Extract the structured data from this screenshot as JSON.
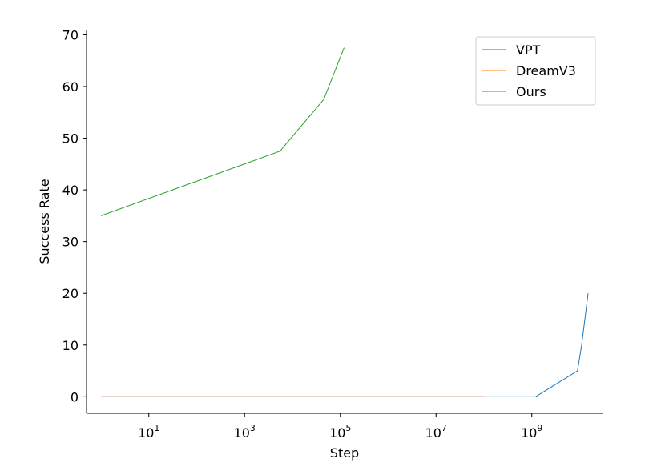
{
  "chart_data": {
    "type": "line",
    "title": "",
    "xlabel": "Step",
    "ylabel": "Success Rate",
    "xscale": "log",
    "xlim": [
      0.5,
      30000000000.0
    ],
    "ylim": [
      -3.2,
      71
    ],
    "x_ticks": [
      {
        "value": 10,
        "base": "10",
        "exp": "1"
      },
      {
        "value": 1000,
        "base": "10",
        "exp": "3"
      },
      {
        "value": 100000,
        "base": "10",
        "exp": "5"
      },
      {
        "value": 10000000,
        "base": "10",
        "exp": "7"
      },
      {
        "value": 1000000000,
        "base": "10",
        "exp": "9"
      }
    ],
    "y_ticks": [
      0,
      10,
      20,
      30,
      40,
      50,
      60,
      70
    ],
    "grid": false,
    "legend_position": "top-right",
    "series": [
      {
        "name": "VPT",
        "color": "#1f77b4",
        "x": [
          1,
          1200000000.0,
          9000000000.0,
          11000000000.0,
          15000000000.0
        ],
        "y": [
          0,
          0,
          5,
          10,
          20
        ]
      },
      {
        "name": "DreamV3",
        "color": "#ff7f0e",
        "x": [
          1,
          100000000.0
        ],
        "y": [
          0,
          0
        ]
      },
      {
        "name": "Ours",
        "color": "#2ca02c",
        "x": [
          1,
          5500.0,
          45000.0,
          120000.0
        ],
        "y": [
          35,
          47.5,
          57.5,
          67.5
        ]
      }
    ],
    "overlay": {
      "color": "#d62728",
      "x": [
        1,
        100000000.0
      ],
      "y": [
        0,
        0
      ]
    }
  }
}
